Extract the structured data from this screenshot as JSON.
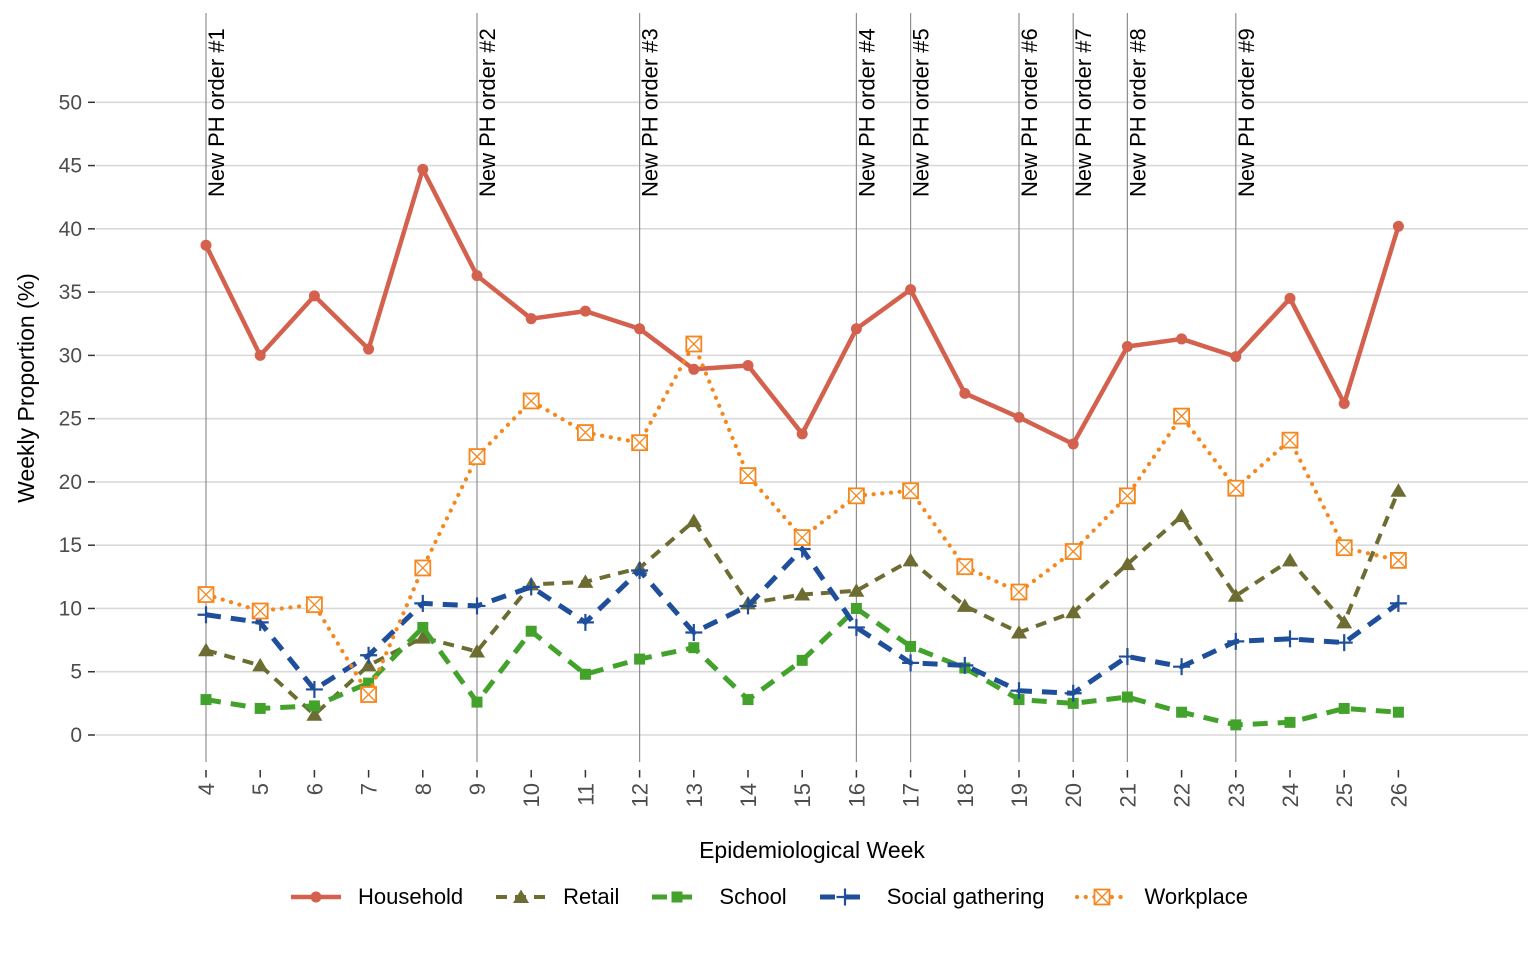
{
  "figure": {
    "background": "#ffffff",
    "text_color": "#000000",
    "axis_tick_text_color": "#4d4d4d",
    "gridline_color": "#d9d9d9",
    "annotation_line_color": "#8f8f8f",
    "tick_mark_color": "#333333"
  },
  "chart_data": {
    "type": "line",
    "title": "",
    "xlabel": "Epidemiological Week",
    "ylabel": "Weekly Proportion (%)",
    "x": [
      4,
      5,
      6,
      7,
      8,
      9,
      10,
      11,
      12,
      13,
      14,
      15,
      16,
      17,
      18,
      19,
      20,
      21,
      22,
      23,
      24,
      25,
      26
    ],
    "yticks": [
      0,
      5,
      10,
      15,
      20,
      25,
      30,
      35,
      40,
      45,
      50
    ],
    "ylim": [
      0,
      50
    ],
    "grid": "horizontal-major-only",
    "legend_position": "bottom",
    "annotations": [
      {
        "label": "New PH order #1",
        "week": 4
      },
      {
        "label": "New PH order #2",
        "week": 9
      },
      {
        "label": "New PH order #3",
        "week": 12
      },
      {
        "label": "New PH order #4",
        "week": 16
      },
      {
        "label": "New PH order #5",
        "week": 17
      },
      {
        "label": "New PH order #6",
        "week": 19
      },
      {
        "label": "New PH order #7",
        "week": 20
      },
      {
        "label": "New PH order #8",
        "week": 21
      },
      {
        "label": "New PH order #9",
        "week": 23
      }
    ],
    "series": [
      {
        "name": "Household",
        "color": "#d4614e",
        "linetype": "solid",
        "marker": "circle",
        "values": [
          38.7,
          30.0,
          34.7,
          30.5,
          44.7,
          36.3,
          32.9,
          33.5,
          32.1,
          28.9,
          29.2,
          23.8,
          32.1,
          35.2,
          27.0,
          25.1,
          23.0,
          30.7,
          31.3,
          29.9,
          34.5,
          26.2,
          40.2
        ]
      },
      {
        "name": "Retail",
        "color": "#6d6d33",
        "linetype": "dashed",
        "marker": "triangle",
        "values": [
          6.7,
          5.5,
          1.6,
          5.5,
          7.7,
          6.6,
          11.9,
          12.1,
          13.2,
          16.9,
          10.4,
          11.1,
          11.4,
          13.8,
          10.2,
          8.1,
          9.7,
          13.5,
          17.3,
          11.0,
          13.8,
          8.9,
          19.3
        ]
      },
      {
        "name": "School",
        "color": "#43a22c",
        "linetype": "longdash",
        "marker": "square",
        "values": [
          2.8,
          2.1,
          2.3,
          4.1,
          8.5,
          2.6,
          8.2,
          4.8,
          6.0,
          6.9,
          2.8,
          5.9,
          10.0,
          7.0,
          5.3,
          2.8,
          2.5,
          3.0,
          1.8,
          0.8,
          1.0,
          2.1,
          1.8
        ]
      },
      {
        "name": "Social gathering",
        "color": "#1f4e9b",
        "linetype": "longdash",
        "marker": "plus",
        "values": [
          9.5,
          8.9,
          3.6,
          6.3,
          10.4,
          10.2,
          11.7,
          8.9,
          13.0,
          8.1,
          10.2,
          14.7,
          8.5,
          5.7,
          5.5,
          3.5,
          3.3,
          6.2,
          5.4,
          7.4,
          7.6,
          7.3,
          10.4
        ]
      },
      {
        "name": "Workplace",
        "color": "#f5871f",
        "linetype": "dotted",
        "marker": "crossed-square",
        "values": [
          11.1,
          9.8,
          10.3,
          3.2,
          13.2,
          22.0,
          26.4,
          23.9,
          23.1,
          30.9,
          20.5,
          15.6,
          18.9,
          19.3,
          13.3,
          11.3,
          14.5,
          18.9,
          25.2,
          19.5,
          23.3,
          14.8,
          13.8
        ]
      }
    ]
  }
}
